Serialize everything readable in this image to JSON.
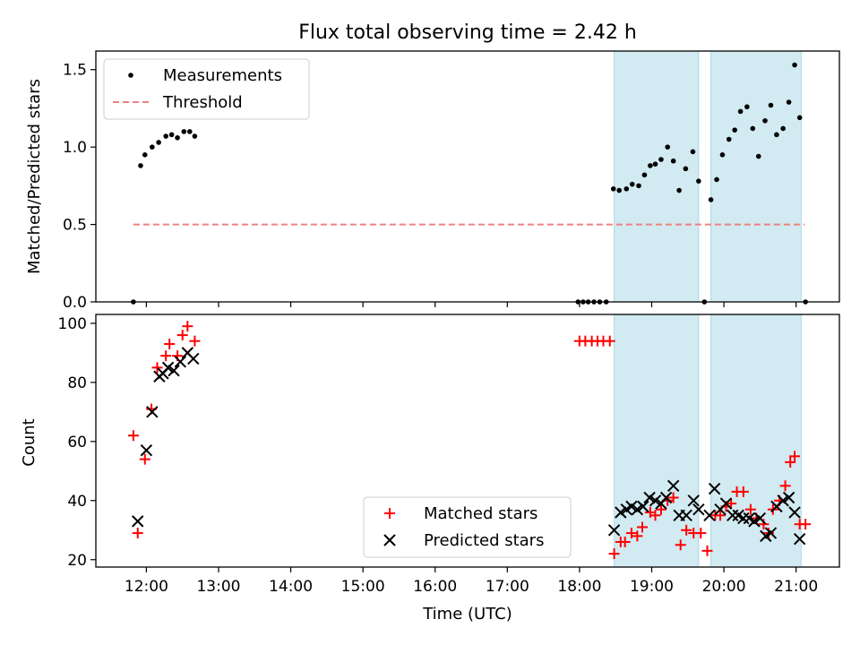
{
  "chart_data": {
    "title": "Flux total observing time = 2.42 h",
    "xlabel": "Time (UTC)",
    "x_ticks": [
      "12:00",
      "13:00",
      "14:00",
      "15:00",
      "16:00",
      "17:00",
      "18:00",
      "19:00",
      "20:00",
      "21:00"
    ],
    "x_range_hours": [
      11.3,
      21.6
    ],
    "shaded_intervals_hours": [
      [
        18.48,
        19.65
      ],
      [
        19.82,
        21.07
      ]
    ],
    "shade_color": "#add8e6",
    "top": {
      "type": "scatter",
      "ylabel": "Matched/Predicted stars",
      "ylim": [
        0,
        1.62
      ],
      "y_ticks": [
        "0.0",
        "0.5",
        "1.0",
        "1.5"
      ],
      "legend_position": "upper-left",
      "threshold": {
        "name": "Threshold",
        "value": 0.5,
        "x_range": [
          11.82,
          21.12
        ],
        "color": "#f08080"
      },
      "measurements": {
        "name": "Measurements",
        "color": "#000000",
        "points": [
          [
            11.82,
            0.0
          ],
          [
            11.92,
            0.88
          ],
          [
            11.98,
            0.95
          ],
          [
            12.08,
            1.0
          ],
          [
            12.17,
            1.03
          ],
          [
            12.27,
            1.07
          ],
          [
            12.35,
            1.08
          ],
          [
            12.43,
            1.06
          ],
          [
            12.52,
            1.1
          ],
          [
            12.6,
            1.1
          ],
          [
            12.67,
            1.07
          ],
          [
            17.98,
            0.0
          ],
          [
            18.05,
            0.0
          ],
          [
            18.12,
            0.0
          ],
          [
            18.2,
            0.0
          ],
          [
            18.28,
            0.0
          ],
          [
            18.37,
            0.0
          ],
          [
            18.47,
            0.73
          ],
          [
            18.55,
            0.72
          ],
          [
            18.65,
            0.73
          ],
          [
            18.73,
            0.76
          ],
          [
            18.82,
            0.75
          ],
          [
            18.9,
            0.82
          ],
          [
            18.98,
            0.88
          ],
          [
            19.05,
            0.89
          ],
          [
            19.13,
            0.92
          ],
          [
            19.22,
            1.0
          ],
          [
            19.3,
            0.91
          ],
          [
            19.38,
            0.72
          ],
          [
            19.47,
            0.86
          ],
          [
            19.57,
            0.97
          ],
          [
            19.65,
            0.78
          ],
          [
            19.73,
            0.0
          ],
          [
            19.82,
            0.66
          ],
          [
            19.9,
            0.79
          ],
          [
            19.98,
            0.95
          ],
          [
            20.07,
            1.05
          ],
          [
            20.15,
            1.11
          ],
          [
            20.23,
            1.23
          ],
          [
            20.32,
            1.26
          ],
          [
            20.4,
            1.12
          ],
          [
            20.48,
            0.94
          ],
          [
            20.57,
            1.17
          ],
          [
            20.65,
            1.27
          ],
          [
            20.73,
            1.08
          ],
          [
            20.82,
            1.12
          ],
          [
            20.9,
            1.29
          ],
          [
            20.98,
            1.53
          ],
          [
            21.05,
            1.19
          ],
          [
            21.13,
            0.0
          ]
        ]
      }
    },
    "bottom": {
      "type": "scatter",
      "ylabel": "Count",
      "ylim": [
        17.5,
        103
      ],
      "y_ticks": [
        "20",
        "40",
        "60",
        "80",
        "100"
      ],
      "legend_position": "lower-center",
      "matched": {
        "name": "Matched stars",
        "color": "#ff0000",
        "marker": "plus",
        "points": [
          [
            11.82,
            62
          ],
          [
            11.88,
            29
          ],
          [
            11.98,
            54
          ],
          [
            12.07,
            71
          ],
          [
            12.15,
            85
          ],
          [
            12.27,
            89
          ],
          [
            12.32,
            93
          ],
          [
            12.43,
            89
          ],
          [
            12.5,
            96
          ],
          [
            12.57,
            99
          ],
          [
            12.67,
            94
          ],
          [
            18.0,
            94
          ],
          [
            18.08,
            94
          ],
          [
            18.17,
            94
          ],
          [
            18.25,
            94
          ],
          [
            18.33,
            94
          ],
          [
            18.42,
            94
          ],
          [
            18.48,
            22
          ],
          [
            18.57,
            26
          ],
          [
            18.63,
            26
          ],
          [
            18.72,
            29
          ],
          [
            18.8,
            28
          ],
          [
            18.87,
            31
          ],
          [
            18.98,
            36
          ],
          [
            19.05,
            35
          ],
          [
            19.13,
            37
          ],
          [
            19.22,
            40
          ],
          [
            19.3,
            41
          ],
          [
            19.4,
            25
          ],
          [
            19.48,
            30
          ],
          [
            19.58,
            29
          ],
          [
            19.68,
            29
          ],
          [
            19.77,
            23
          ],
          [
            19.88,
            35
          ],
          [
            19.95,
            35
          ],
          [
            20.03,
            38
          ],
          [
            20.1,
            39
          ],
          [
            20.18,
            43
          ],
          [
            20.27,
            43
          ],
          [
            20.37,
            37
          ],
          [
            20.45,
            34
          ],
          [
            20.55,
            32
          ],
          [
            20.62,
            29
          ],
          [
            20.68,
            37
          ],
          [
            20.77,
            40
          ],
          [
            20.85,
            45
          ],
          [
            20.92,
            53
          ],
          [
            20.98,
            55
          ],
          [
            21.05,
            32
          ],
          [
            21.13,
            32
          ]
        ]
      },
      "predicted": {
        "name": "Predicted stars",
        "color": "#000000",
        "marker": "x",
        "points": [
          [
            11.88,
            33
          ],
          [
            12.0,
            57
          ],
          [
            12.08,
            70
          ],
          [
            12.18,
            82
          ],
          [
            12.23,
            83
          ],
          [
            12.3,
            85
          ],
          [
            12.38,
            84
          ],
          [
            12.47,
            87
          ],
          [
            12.57,
            90
          ],
          [
            12.65,
            88
          ],
          [
            18.48,
            30
          ],
          [
            18.57,
            36
          ],
          [
            18.65,
            37
          ],
          [
            18.72,
            38
          ],
          [
            18.8,
            37
          ],
          [
            18.88,
            38
          ],
          [
            18.97,
            41
          ],
          [
            19.05,
            40
          ],
          [
            19.13,
            39
          ],
          [
            19.2,
            41
          ],
          [
            19.3,
            45
          ],
          [
            19.38,
            35
          ],
          [
            19.48,
            35
          ],
          [
            19.58,
            40
          ],
          [
            19.65,
            37
          ],
          [
            19.8,
            35
          ],
          [
            19.87,
            44
          ],
          [
            19.95,
            37
          ],
          [
            20.03,
            39
          ],
          [
            20.12,
            35
          ],
          [
            20.2,
            35
          ],
          [
            20.27,
            34
          ],
          [
            20.35,
            34
          ],
          [
            20.42,
            33
          ],
          [
            20.5,
            34
          ],
          [
            20.58,
            28
          ],
          [
            20.65,
            29
          ],
          [
            20.73,
            38
          ],
          [
            20.82,
            40
          ],
          [
            20.9,
            41
          ],
          [
            20.98,
            36
          ],
          [
            21.05,
            27
          ]
        ]
      }
    }
  }
}
